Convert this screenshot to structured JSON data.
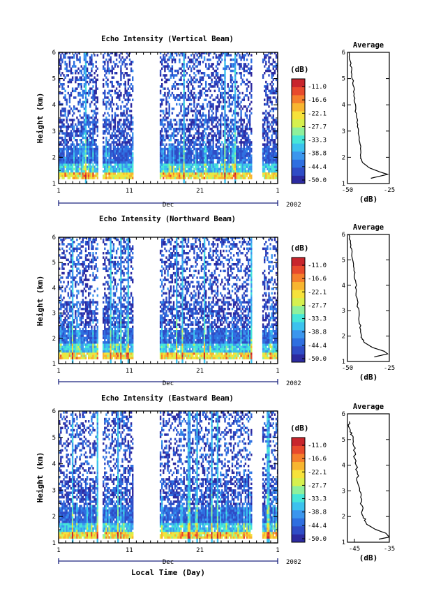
{
  "chart_data": [
    {
      "type": "heatmap",
      "title": "Echo Intensity (Vertical Beam)",
      "ylabel": "Height (km)",
      "xlabel": "",
      "ylim": [
        1,
        6
      ],
      "yticks": [
        "1",
        "2",
        "3",
        "4",
        "5",
        "6"
      ],
      "xticks": [
        "1",
        "11",
        "21",
        "1"
      ],
      "period_label": "Dec",
      "year_label": "2002",
      "colorbar": {
        "unit": "(dB)",
        "ticks": [
          "-11.0",
          "-16.6",
          "-22.1",
          "-27.7",
          "-33.3",
          "-38.8",
          "-44.4",
          "-50.0"
        ],
        "range": [
          -50.0,
          -11.0
        ]
      },
      "data_gaps_days": [
        [
          6.5,
          7.2
        ],
        [
          11.5,
          15.3
        ],
        [
          28.3,
          29.7
        ]
      ],
      "average_profile": {
        "title": "Average",
        "xlabel": "(dB)",
        "xticks": [
          "-50",
          "-25"
        ],
        "xlim": [
          -50,
          -25
        ],
        "yticks": [
          "1",
          "2",
          "3",
          "4",
          "5",
          "6"
        ],
        "points": [
          [
            -49,
            6.0
          ],
          [
            -48,
            5.5
          ],
          [
            -47,
            5.0
          ],
          [
            -46,
            4.5
          ],
          [
            -45.5,
            4.0
          ],
          [
            -44.5,
            3.5
          ],
          [
            -43.5,
            3.0
          ],
          [
            -42.5,
            2.5
          ],
          [
            -42,
            2.0
          ],
          [
            -41,
            1.8
          ],
          [
            -37,
            1.6
          ],
          [
            -31,
            1.45
          ],
          [
            -26,
            1.35
          ],
          [
            -36,
            1.2
          ]
        ]
      }
    },
    {
      "type": "heatmap",
      "title": "Echo Intensity (Northward Beam)",
      "ylabel": "Height (km)",
      "xlabel": "",
      "ylim": [
        1,
        6
      ],
      "yticks": [
        "1",
        "2",
        "3",
        "4",
        "5",
        "6"
      ],
      "xticks": [
        "1",
        "11",
        "21",
        "1"
      ],
      "period_label": "Dec",
      "year_label": "2002",
      "colorbar": {
        "unit": "(dB)",
        "ticks": [
          "-11.0",
          "-16.6",
          "-22.1",
          "-27.7",
          "-33.3",
          "-38.8",
          "-44.4",
          "-50.0"
        ],
        "range": [
          -50.0,
          -11.0
        ]
      },
      "data_gaps_days": [
        [
          6.5,
          7.2
        ],
        [
          11.5,
          15.3
        ],
        [
          28.3,
          29.7
        ]
      ],
      "average_profile": {
        "title": "Average",
        "xlabel": "(dB)",
        "xticks": [
          "-50",
          "-25"
        ],
        "xlim": [
          -50,
          -25
        ],
        "yticks": [
          "1",
          "2",
          "3",
          "4",
          "5",
          "6"
        ],
        "points": [
          [
            -49,
            6.0
          ],
          [
            -48,
            5.5
          ],
          [
            -47,
            5.0
          ],
          [
            -46,
            4.5
          ],
          [
            -45,
            4.0
          ],
          [
            -44.5,
            3.5
          ],
          [
            -43.5,
            3.0
          ],
          [
            -42.5,
            2.5
          ],
          [
            -42,
            2.0
          ],
          [
            -40,
            1.75
          ],
          [
            -35,
            1.55
          ],
          [
            -28,
            1.4
          ],
          [
            -26,
            1.3
          ],
          [
            -34,
            1.18
          ]
        ]
      }
    },
    {
      "type": "heatmap",
      "title": "Echo Intensity (Eastward Beam)",
      "ylabel": "Height (km)",
      "xlabel": "Local Time (Day)",
      "ylim": [
        1,
        6
      ],
      "yticks": [
        "1",
        "2",
        "3",
        "4",
        "5",
        "6"
      ],
      "xticks": [
        "1",
        "11",
        "21",
        "1"
      ],
      "period_label": "Dec",
      "year_label": "2002",
      "colorbar": {
        "unit": "(dB)",
        "ticks": [
          "-11.0",
          "-16.6",
          "-22.1",
          "-27.7",
          "-33.3",
          "-38.8",
          "-44.4",
          "-50.0"
        ],
        "range": [
          -50.0,
          -11.0
        ]
      },
      "data_gaps_days": [
        [
          6.5,
          7.2
        ],
        [
          11.5,
          15.3
        ],
        [
          28.3,
          29.7
        ]
      ],
      "average_profile": {
        "title": "Average",
        "xlabel": "(dB)",
        "xticks": [
          "-45",
          "-35"
        ],
        "xlim": [
          -47,
          -35
        ],
        "yticks": [
          "1",
          "2",
          "3",
          "4",
          "5",
          "6"
        ],
        "points": [
          [
            -46.5,
            5.7
          ],
          [
            -46,
            5.3
          ],
          [
            -45.5,
            5.0
          ],
          [
            -45,
            4.5
          ],
          [
            -44.5,
            4.0
          ],
          [
            -44,
            3.5
          ],
          [
            -43.5,
            3.0
          ],
          [
            -43,
            2.5
          ],
          [
            -42.5,
            2.0
          ],
          [
            -41.5,
            1.7
          ],
          [
            -39,
            1.5
          ],
          [
            -36,
            1.35
          ],
          [
            -35,
            1.2
          ],
          [
            -38,
            1.12
          ]
        ]
      }
    }
  ],
  "colors": {
    "jet": [
      "#2c2aa0",
      "#2f4cc6",
      "#2f6fe0",
      "#3b96ee",
      "#3cc2ee",
      "#46e6d8",
      "#8ef09c",
      "#d6f04e",
      "#f6e23a",
      "#f8b530",
      "#f57f2c",
      "#e84a2c",
      "#c8252c"
    ]
  }
}
